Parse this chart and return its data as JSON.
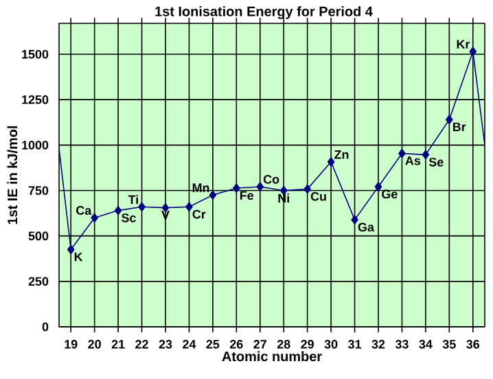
{
  "chart_data": {
    "type": "line",
    "title": "1st Ionisation Energy for Period 4",
    "xlabel": "Atomic number",
    "ylabel": "1st IE in kJ/mol",
    "x": [
      19,
      20,
      21,
      22,
      23,
      24,
      25,
      26,
      27,
      28,
      29,
      30,
      31,
      32,
      33,
      34,
      35,
      36
    ],
    "series": [
      {
        "color": "#000080",
        "values": [
          425,
          600,
          640,
          660,
          655,
          660,
          725,
          763,
          771,
          750,
          758,
          908,
          589,
          771,
          954,
          947,
          1140,
          1515
        ]
      },
      {
        "color": "#000080",
        "x": [
          18.5,
          19
        ],
        "values": [
          980,
          425
        ],
        "marker": "none"
      },
      {
        "color": "#000080",
        "x": [
          36,
          36.5
        ],
        "values": [
          1515,
          1000
        ],
        "marker": "none"
      }
    ],
    "xlim": [
      18.5,
      36.5
    ],
    "ylim": [
      0,
      1670
    ],
    "xticks": [
      19,
      20,
      21,
      22,
      23,
      24,
      25,
      26,
      27,
      28,
      29,
      30,
      31,
      32,
      33,
      34,
      35,
      36
    ],
    "yticks": [
      0,
      250,
      500,
      750,
      1000,
      1250,
      1500
    ],
    "grid": true,
    "marker": "diamond",
    "line_style": "solid",
    "annotations": [
      {
        "text": "K",
        "x": 19,
        "y": 425
      },
      {
        "text": "Ca",
        "x": 20,
        "y": 600
      },
      {
        "text": "Sc",
        "x": 21,
        "y": 640
      },
      {
        "text": "Ti",
        "x": 22,
        "y": 660
      },
      {
        "text": "V",
        "x": 23,
        "y": 655
      },
      {
        "text": "Cr",
        "x": 24,
        "y": 660
      },
      {
        "text": "Mn",
        "x": 25,
        "y": 725
      },
      {
        "text": "Fe",
        "x": 26,
        "y": 763
      },
      {
        "text": "Co",
        "x": 27,
        "y": 771
      },
      {
        "text": "Ni",
        "x": 28,
        "y": 750
      },
      {
        "text": "Cu",
        "x": 29,
        "y": 758
      },
      {
        "text": "Zn",
        "x": 30,
        "y": 908
      },
      {
        "text": "Ga",
        "x": 31,
        "y": 589
      },
      {
        "text": "Ge",
        "x": 32,
        "y": 771
      },
      {
        "text": "As",
        "x": 33,
        "y": 954
      },
      {
        "text": "Se",
        "x": 34,
        "y": 947
      },
      {
        "text": "Br",
        "x": 35,
        "y": 1140
      },
      {
        "text": "Kr",
        "x": 36,
        "y": 1515
      }
    ]
  }
}
